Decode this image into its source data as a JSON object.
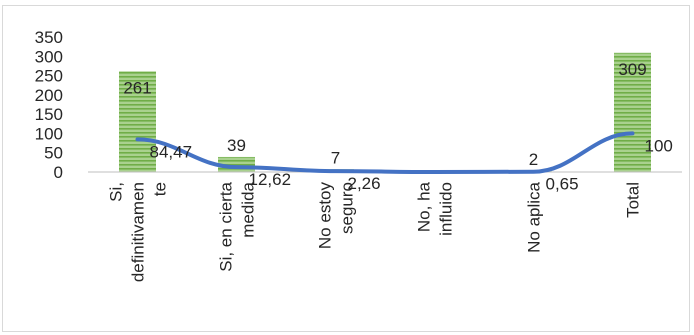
{
  "chart_data": {
    "type": "bar",
    "categories": [
      [
        "Si,",
        "definitivamen",
        "te"
      ],
      [
        "Si, en cierta",
        "medida"
      ],
      [
        "No estoy",
        "seguro"
      ],
      [
        "No, ha",
        "influido"
      ],
      [
        "No aplica"
      ],
      [
        "Total"
      ]
    ],
    "series": [
      {
        "kind": "bar",
        "values": [
          261,
          39,
          7,
          null,
          2,
          309
        ],
        "labels": [
          "261",
          "39",
          "7",
          "",
          "2",
          "309"
        ],
        "color": "#8bc34a"
      },
      {
        "kind": "line",
        "values": [
          84.47,
          12.62,
          2.26,
          0,
          0.65,
          100
        ],
        "labels": [
          "84,47",
          "12,62",
          "2,26",
          "",
          "0,65",
          "100"
        ],
        "color": "#4472c4"
      }
    ],
    "y_ticks": [
      "0",
      "50",
      "100",
      "150",
      "200",
      "250",
      "300",
      "350"
    ],
    "ylim": [
      0,
      350
    ],
    "grid": false,
    "legend": "none"
  }
}
